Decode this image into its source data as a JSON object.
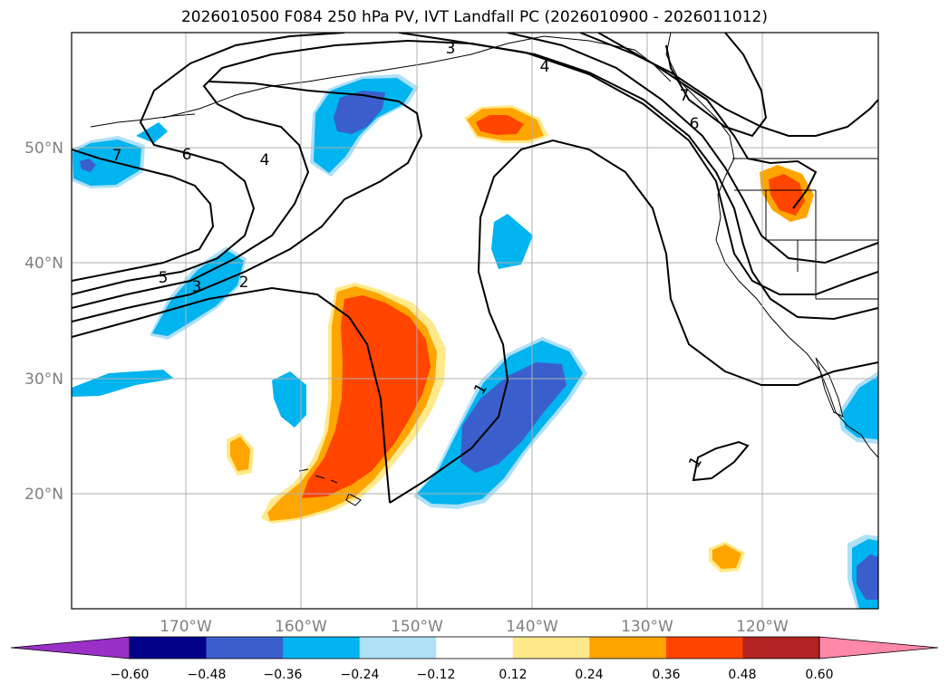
{
  "title": "2026010500 F084 250 hPa PV, IVT Landfall PC (2026010900 - 2026011012)",
  "map": {
    "lat_labels": [
      "50°N",
      "40°N",
      "30°N",
      "20°N"
    ],
    "lon_labels": [
      "170°W",
      "160°W",
      "150°W",
      "140°W",
      "130°W",
      "120°W"
    ],
    "contour_labels": [
      "3",
      "4",
      "7",
      "6",
      "7",
      "6",
      "4",
      "5",
      "3",
      "2",
      "1",
      "1"
    ]
  },
  "colorbar": {
    "ticks": [
      "−0.60",
      "−0.48",
      "−0.36",
      "−0.24",
      "−0.12",
      "0.12",
      "0.24",
      "0.36",
      "0.48",
      "0.60"
    ],
    "colors": [
      "#9b30c8",
      "#00008b",
      "#3a5fcd",
      "#00b4f0",
      "#aee0f8",
      "#ffffff",
      "#ffe98a",
      "#ffa500",
      "#ff4500",
      "#b22222",
      "#ff87a8"
    ]
  }
}
